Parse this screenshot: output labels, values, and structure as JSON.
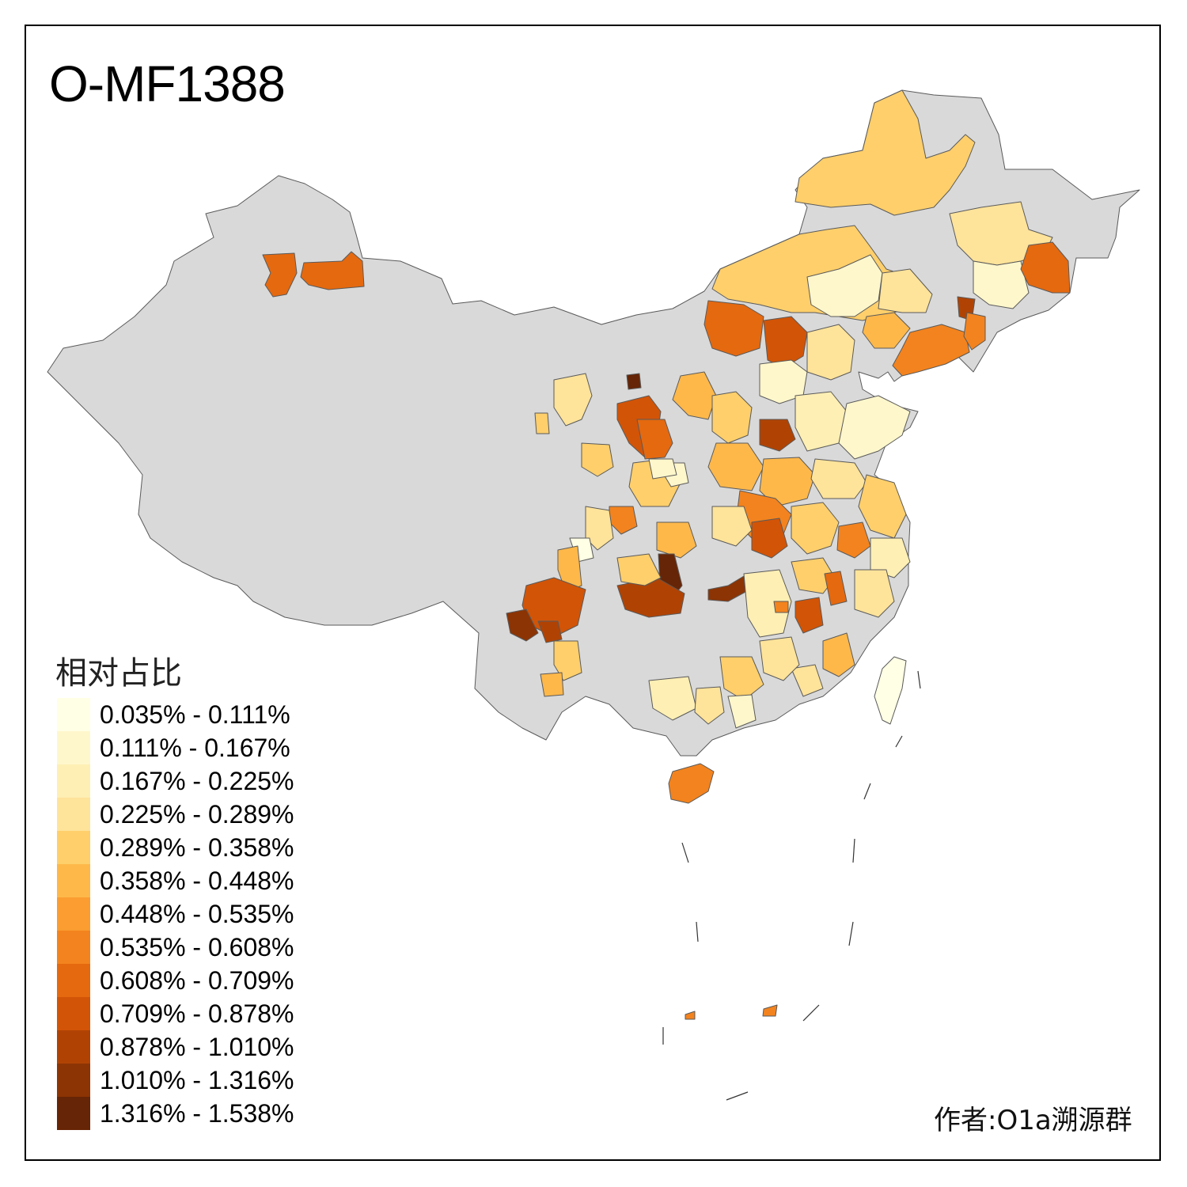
{
  "title": "O-MF1388",
  "legend": {
    "title": "相对占比",
    "classes": [
      {
        "label": "0.035% - 0.111%",
        "color": "#FFFFE5"
      },
      {
        "label": "0.111% - 0.167%",
        "color": "#FFF7CC"
      },
      {
        "label": "0.167% - 0.225%",
        "color": "#FEEFB4"
      },
      {
        "label": "0.225% - 0.289%",
        "color": "#FEE39A"
      },
      {
        "label": "0.289% - 0.358%",
        "color": "#FECF6B"
      },
      {
        "label": "0.358% - 0.448%",
        "color": "#FEB84A"
      },
      {
        "label": "0.448% - 0.535%",
        "color": "#FB9D31"
      },
      {
        "label": "0.535% - 0.608%",
        "color": "#F3831E"
      },
      {
        "label": "0.608% - 0.709%",
        "color": "#E5690F"
      },
      {
        "label": "0.709% - 0.878%",
        "color": "#D25407"
      },
      {
        "label": "0.878% - 1.010%",
        "color": "#B04304"
      },
      {
        "label": "1.010% - 1.316%",
        "color": "#8C3404"
      },
      {
        "label": "1.316% - 1.538%",
        "color": "#662506"
      }
    ]
  },
  "no_data_color": "#D9D9D9",
  "author": "作者:O1a溯源群"
}
